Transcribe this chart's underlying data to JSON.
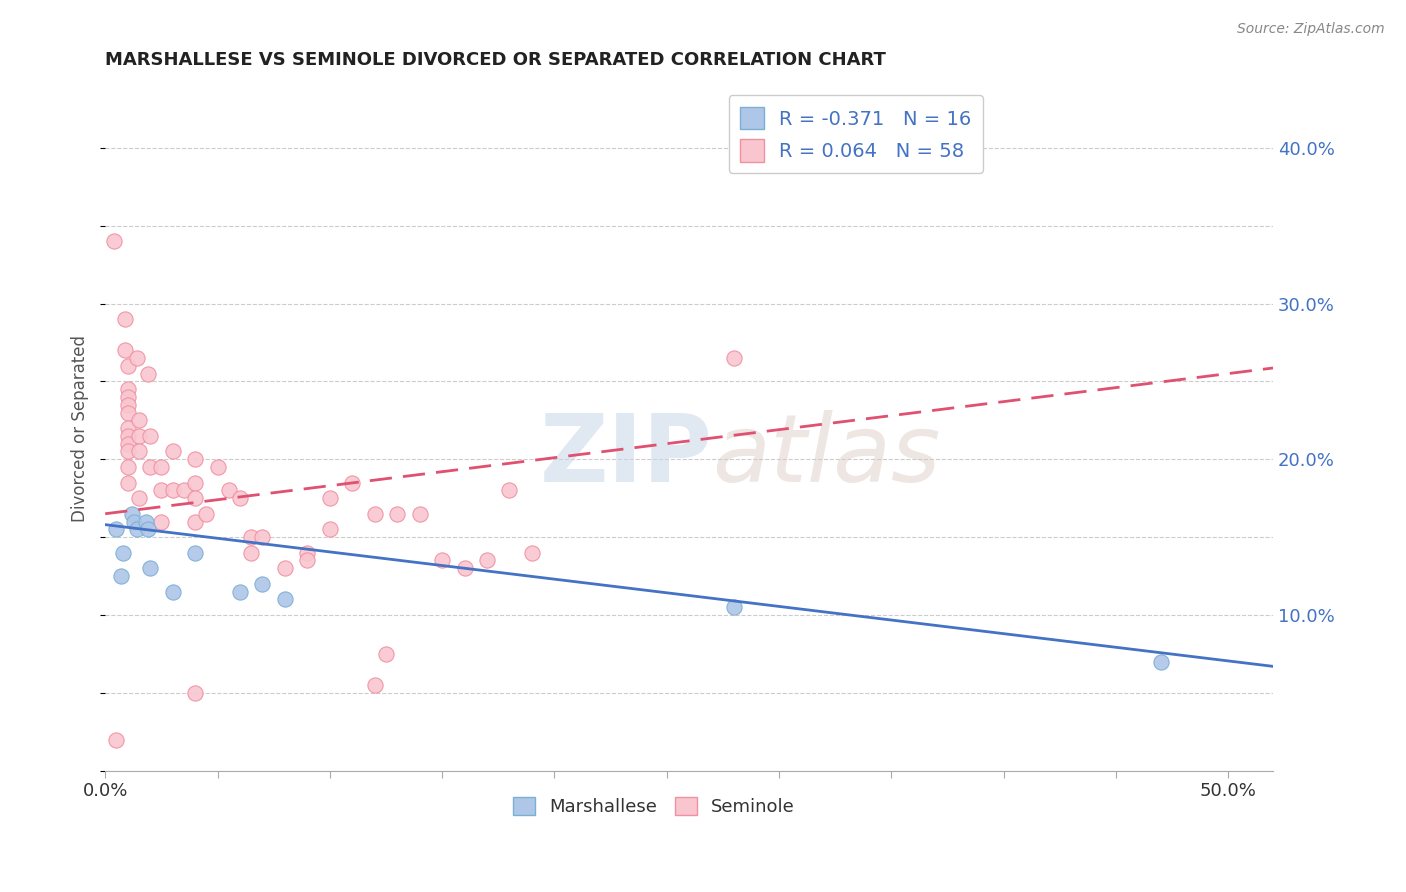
{
  "title": "MARSHALLESE VS SEMINOLE DIVORCED OR SEPARATED CORRELATION CHART",
  "source": "Source: ZipAtlas.com",
  "ylabel": "Divorced or Separated",
  "legend_entries": [
    {
      "label": "R = -0.371   N = 16",
      "color": "#aec6e8",
      "edge": "#7bafd4"
    },
    {
      "label": "R = 0.064   N = 58",
      "color": "#f9c6d0",
      "edge": "#f090a0"
    }
  ],
  "marshallese_fill": "#aec6e8",
  "marshallese_edge": "#7bafd4",
  "seminole_fill": "#f9c6d0",
  "seminole_edge": "#f090a0",
  "marshallese_line_color": "#4472c4",
  "seminole_line_color": "#e05070",
  "marshallese_points": [
    [
      0.005,
      0.155
    ],
    [
      0.007,
      0.125
    ],
    [
      0.008,
      0.14
    ],
    [
      0.012,
      0.165
    ],
    [
      0.013,
      0.16
    ],
    [
      0.014,
      0.155
    ],
    [
      0.018,
      0.16
    ],
    [
      0.019,
      0.155
    ],
    [
      0.02,
      0.13
    ],
    [
      0.03,
      0.115
    ],
    [
      0.04,
      0.14
    ],
    [
      0.06,
      0.115
    ],
    [
      0.07,
      0.12
    ],
    [
      0.08,
      0.11
    ],
    [
      0.28,
      0.105
    ],
    [
      0.47,
      0.07
    ]
  ],
  "seminole_points": [
    [
      0.004,
      0.34
    ],
    [
      0.009,
      0.29
    ],
    [
      0.009,
      0.27
    ],
    [
      0.01,
      0.26
    ],
    [
      0.01,
      0.245
    ],
    [
      0.01,
      0.24
    ],
    [
      0.01,
      0.235
    ],
    [
      0.01,
      0.23
    ],
    [
      0.01,
      0.22
    ],
    [
      0.01,
      0.215
    ],
    [
      0.01,
      0.21
    ],
    [
      0.01,
      0.205
    ],
    [
      0.01,
      0.195
    ],
    [
      0.01,
      0.185
    ],
    [
      0.014,
      0.265
    ],
    [
      0.015,
      0.225
    ],
    [
      0.015,
      0.215
    ],
    [
      0.015,
      0.205
    ],
    [
      0.015,
      0.175
    ],
    [
      0.019,
      0.255
    ],
    [
      0.02,
      0.215
    ],
    [
      0.02,
      0.195
    ],
    [
      0.025,
      0.195
    ],
    [
      0.025,
      0.18
    ],
    [
      0.025,
      0.16
    ],
    [
      0.03,
      0.205
    ],
    [
      0.03,
      0.18
    ],
    [
      0.035,
      0.18
    ],
    [
      0.04,
      0.2
    ],
    [
      0.04,
      0.185
    ],
    [
      0.04,
      0.175
    ],
    [
      0.04,
      0.16
    ],
    [
      0.045,
      0.165
    ],
    [
      0.05,
      0.195
    ],
    [
      0.055,
      0.18
    ],
    [
      0.06,
      0.175
    ],
    [
      0.065,
      0.15
    ],
    [
      0.065,
      0.14
    ],
    [
      0.07,
      0.15
    ],
    [
      0.08,
      0.13
    ],
    [
      0.09,
      0.14
    ],
    [
      0.09,
      0.135
    ],
    [
      0.1,
      0.175
    ],
    [
      0.1,
      0.155
    ],
    [
      0.11,
      0.185
    ],
    [
      0.12,
      0.165
    ],
    [
      0.13,
      0.165
    ],
    [
      0.14,
      0.165
    ],
    [
      0.15,
      0.135
    ],
    [
      0.16,
      0.13
    ],
    [
      0.17,
      0.135
    ],
    [
      0.18,
      0.18
    ],
    [
      0.19,
      0.14
    ],
    [
      0.28,
      0.265
    ],
    [
      0.04,
      0.05
    ],
    [
      0.12,
      0.055
    ],
    [
      0.005,
      0.02
    ],
    [
      0.125,
      0.075
    ]
  ],
  "xlim": [
    0,
    0.52
  ],
  "ylim": [
    0,
    0.44
  ],
  "watermark_zip": "ZIP",
  "watermark_atlas": "atlas",
  "background_color": "#ffffff",
  "grid_color": "#cccccc",
  "right_tick_color": "#4472c4",
  "y_ticks": [
    0.1,
    0.2,
    0.3,
    0.4
  ],
  "y_tick_labels": [
    "10.0%",
    "20.0%",
    "30.0%",
    "40.0%"
  ],
  "x_ticks": [
    0.0,
    0.05,
    0.1,
    0.15,
    0.2,
    0.25,
    0.3,
    0.35,
    0.4,
    0.45,
    0.5
  ],
  "marshallese_reg": [
    -0.175,
    0.158
  ],
  "seminole_reg": [
    0.18,
    0.165
  ]
}
